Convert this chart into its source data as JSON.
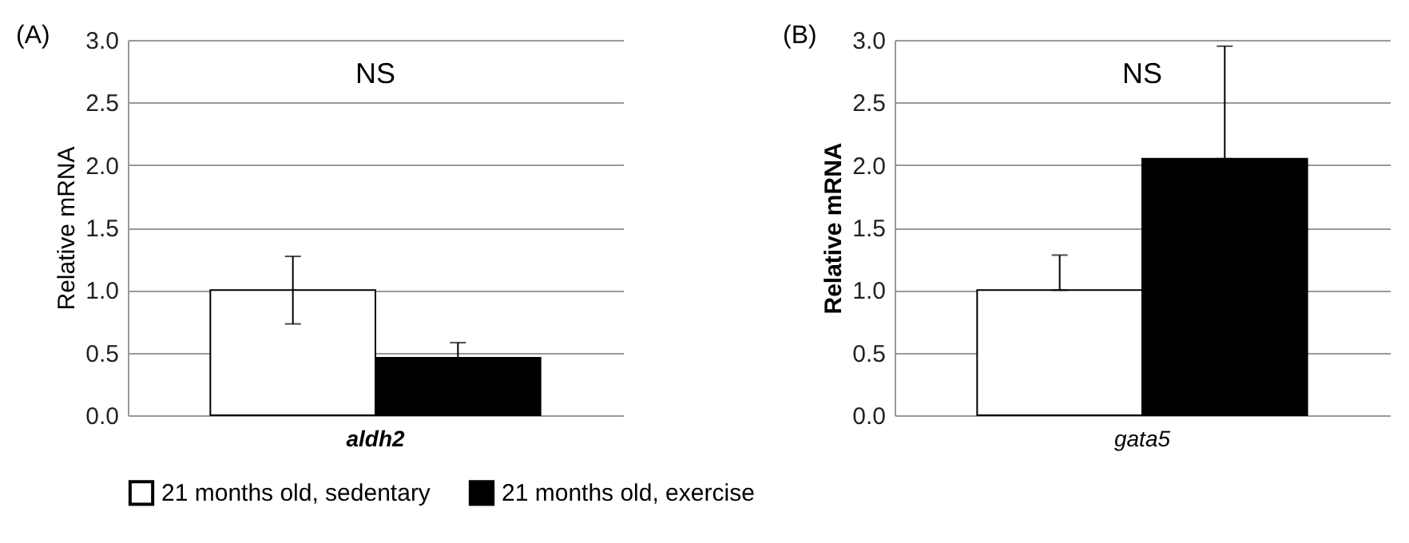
{
  "chart_data": [
    {
      "type": "bar",
      "title": "(A)",
      "ylabel": "Relative mRNA",
      "categories": [
        "aldh2"
      ],
      "series": [
        {
          "name": "21 months old, sedentary",
          "color": "#ffffff",
          "values": [
            1.0
          ],
          "errors": [
            0.27
          ]
        },
        {
          "name": "21 months old, exercise",
          "color": "#000000",
          "values": [
            0.46
          ],
          "errors": [
            0.12
          ]
        }
      ],
      "ylim": [
        0,
        3
      ],
      "yticks": [
        {
          "value": 0,
          "label": "0.0"
        },
        {
          "value": 0.5,
          "label": "0.5"
        },
        {
          "value": 1,
          "label": "1.0"
        },
        {
          "value": 1.5,
          "label": "1.5"
        },
        {
          "value": 2,
          "label": "2.0"
        },
        {
          "value": 2.5,
          "label": "2.5"
        },
        {
          "value": 3,
          "label": "3.0"
        }
      ],
      "grid": "y",
      "legend": "bottom",
      "annotations": [
        "NS"
      ]
    },
    {
      "type": "bar",
      "title": "(B)",
      "ylabel": "Relative mRNA",
      "categories": [
        "gata5"
      ],
      "series": [
        {
          "name": "21 months old, sedentary",
          "color": "#ffffff",
          "values": [
            1.0
          ],
          "errors": [
            [
              1.0,
              1.28
            ]
          ]
        },
        {
          "name": "21 months old, exercise",
          "color": "#000000",
          "values": [
            2.05
          ],
          "errors": [
            [
              2.05,
              2.95
            ]
          ]
        }
      ],
      "ylim": [
        0,
        3
      ],
      "yticks": [
        {
          "value": 0,
          "label": "0.0"
        },
        {
          "value": 0.5,
          "label": "0.5"
        },
        {
          "value": 1,
          "label": "1.0"
        },
        {
          "value": 1.5,
          "label": "1.5"
        },
        {
          "value": 2,
          "label": "2.0"
        },
        {
          "value": 2.5,
          "label": "2.5"
        },
        {
          "value": 3,
          "label": "3.0"
        }
      ],
      "grid": "y",
      "legend": "bottom",
      "annotations": [
        "NS"
      ]
    }
  ]
}
